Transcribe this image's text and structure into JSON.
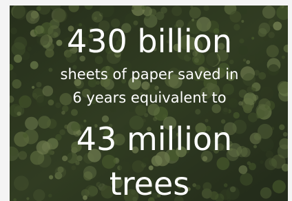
{
  "headline": "430 billion",
  "description": [
    "sheets of paper saved in",
    "6 years equivalent to"
  ],
  "highlight": [
    "43 million",
    "trees"
  ]
}
